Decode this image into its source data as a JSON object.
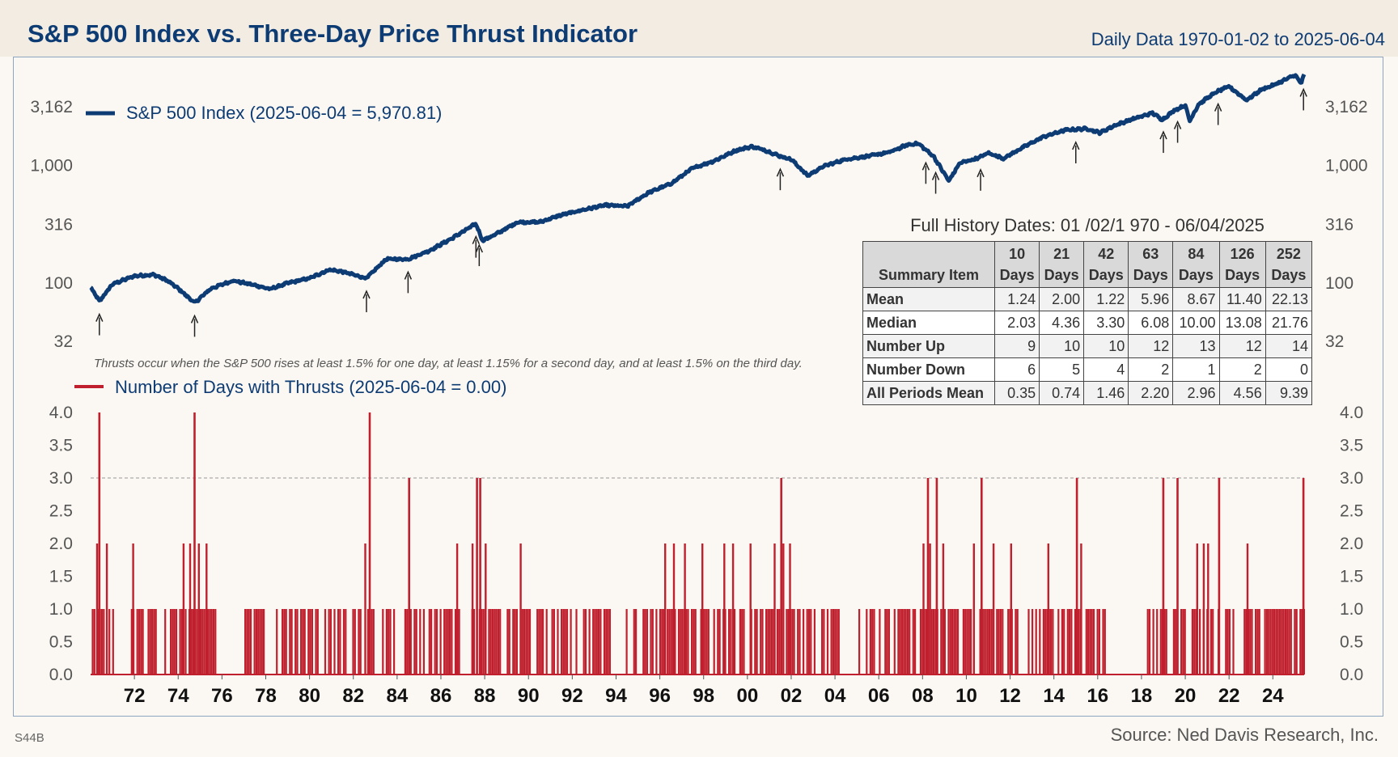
{
  "header": {
    "title": "S&P 500 Index vs. Three-Day Price Thrust Indicator",
    "subtitle": "Daily Data 1970-01-02 to 2025-06-04"
  },
  "footer": {
    "code": "S44B",
    "source": "Source: Ned Davis Research, Inc."
  },
  "colors": {
    "index_line": "#0d3b73",
    "thrust_bars": "#c0202e",
    "background": "#fbf8f3",
    "header_bg": "#f2ece2"
  },
  "summary": {
    "title": "Full History Dates: 01 /02/1 970 - 06/04/2025",
    "item_header": "Summary Item",
    "columns": [
      {
        "n": "10",
        "unit": "Days"
      },
      {
        "n": "21",
        "unit": "Days"
      },
      {
        "n": "42",
        "unit": "Days"
      },
      {
        "n": "63",
        "unit": "Days"
      },
      {
        "n": "84",
        "unit": "Days"
      },
      {
        "n": "126",
        "unit": "Days"
      },
      {
        "n": "252",
        "unit": "Days"
      }
    ],
    "rows": [
      {
        "label": "Mean",
        "values": [
          "1.24",
          "2.00",
          "1.22",
          "5.96",
          "8.67",
          "11.40",
          "22.13"
        ]
      },
      {
        "label": "Median",
        "values": [
          "2.03",
          "4.36",
          "3.30",
          "6.08",
          "10.00",
          "13.08",
          "21.76"
        ]
      },
      {
        "label": "Number Up",
        "values": [
          "9",
          "10",
          "10",
          "12",
          "13",
          "12",
          "14"
        ]
      },
      {
        "label": "Number Down",
        "values": [
          "6",
          "5",
          "4",
          "2",
          "1",
          "2",
          "0"
        ]
      },
      {
        "label": "All Periods Mean",
        "values": [
          "0.35",
          "0.74",
          "1.46",
          "2.20",
          "2.96",
          "4.56",
          "9.39"
        ]
      }
    ]
  },
  "chart_data": [
    {
      "type": "line",
      "log_scale": true,
      "series": [
        {
          "name": "S&P 500 Index (2025-06-04 = 5,970.81)"
        }
      ],
      "y_ticks": [
        32,
        100,
        316,
        1000,
        3162
      ],
      "y_tick_labels": [
        "32",
        "100",
        "316",
        "1,000",
        "3,162"
      ],
      "ylim": [
        32,
        5970.81
      ],
      "grid": false,
      "x": [
        1970.0,
        1970.4,
        1971.0,
        1972.0,
        1972.9,
        1973.5,
        1974.0,
        1974.75,
        1975.5,
        1976.5,
        1977.5,
        1978.2,
        1979.0,
        1980.0,
        1980.9,
        1981.5,
        1982.6,
        1983.5,
        1984.5,
        1985.5,
        1986.5,
        1987.6,
        1987.9,
        1988.5,
        1989.5,
        1990.5,
        1991.5,
        1992.5,
        1993.5,
        1994.5,
        1995.5,
        1996.5,
        1997.5,
        1998.5,
        1999.5,
        2000.2,
        2000.8,
        2001.5,
        2002.0,
        2002.75,
        2003.5,
        2004.5,
        2005.5,
        2006.5,
        2007.3,
        2007.8,
        2008.5,
        2009.2,
        2009.7,
        2010.5,
        2011.0,
        2011.7,
        2012.5,
        2013.5,
        2014.5,
        2015.5,
        2016.1,
        2016.8,
        2017.5,
        2018.5,
        2018.95,
        2019.5,
        2020.0,
        2020.2,
        2020.6,
        2021.0,
        2021.5,
        2022.0,
        2022.8,
        2023.5,
        2024.0,
        2024.6,
        2025.0,
        2025.3,
        2025.43
      ],
      "y": [
        92,
        70,
        98,
        115,
        118,
        105,
        90,
        68,
        90,
        105,
        96,
        89,
        100,
        110,
        130,
        125,
        110,
        160,
        160,
        190,
        240,
        320,
        230,
        260,
        330,
        330,
        380,
        420,
        460,
        450,
        590,
        700,
        950,
        1100,
        1350,
        1450,
        1350,
        1200,
        1130,
        820,
        990,
        1130,
        1200,
        1300,
        1500,
        1540,
        1200,
        740,
        1050,
        1150,
        1280,
        1150,
        1400,
        1750,
        2000,
        2060,
        1900,
        2200,
        2450,
        2800,
        2450,
        2950,
        3250,
        2400,
        3300,
        3750,
        4300,
        4700,
        3600,
        4450,
        4800,
        5400,
        5900,
        5000,
        5970.81
      ]
    },
    {
      "type": "bar",
      "series": [
        {
          "name": "Number of Days with Thrusts (2025-06-04 = 0.00)"
        }
      ],
      "y_ticks": [
        "0.0",
        "0.5",
        "1.0",
        "1.5",
        "2.0",
        "2.5",
        "3.0",
        "3.5",
        "4.0"
      ],
      "ylim": [
        0,
        4
      ],
      "reference_line": 3.0,
      "x_ticks": [
        "72",
        "74",
        "76",
        "78",
        "80",
        "82",
        "84",
        "86",
        "88",
        "90",
        "92",
        "94",
        "96",
        "98",
        "00",
        "02",
        "04",
        "06",
        "08",
        "10",
        "12",
        "14",
        "16",
        "18",
        "20",
        "22",
        "24"
      ],
      "x_tick_years": [
        1972,
        1974,
        1976,
        1978,
        1980,
        1982,
        1984,
        1986,
        1988,
        1990,
        1992,
        1994,
        1996,
        1998,
        2000,
        2002,
        2004,
        2006,
        2008,
        2010,
        2012,
        2014,
        2016,
        2018,
        2020,
        2022,
        2024
      ],
      "peaks": [
        {
          "x": 1970.35,
          "y": 4
        },
        {
          "x": 1974.7,
          "y": 4
        },
        {
          "x": 1982.7,
          "y": 4
        },
        {
          "x": 1984.5,
          "y": 3
        },
        {
          "x": 1987.6,
          "y": 3
        },
        {
          "x": 1987.75,
          "y": 3
        },
        {
          "x": 2001.5,
          "y": 3
        },
        {
          "x": 2008.2,
          "y": 3
        },
        {
          "x": 2008.6,
          "y": 3
        },
        {
          "x": 2010.65,
          "y": 3
        },
        {
          "x": 2015.0,
          "y": 3
        },
        {
          "x": 2018.95,
          "y": 3
        },
        {
          "x": 2019.6,
          "y": 3
        },
        {
          "x": 2021.5,
          "y": 3
        },
        {
          "x": 2025.35,
          "y": 3
        }
      ],
      "bars_at_2": [
        1970.25,
        1970.7,
        1971.9,
        1974.2,
        1974.5,
        1974.9,
        1975.25,
        1982.5,
        1986.7,
        1987.4,
        1988.0,
        1989.6,
        1996.2,
        1996.6,
        1997.1,
        1997.9,
        1998.9,
        1999.3,
        2000.1,
        2001.2,
        2001.6,
        2001.9,
        2008.0,
        2008.3,
        2008.9,
        2010.3,
        2011.2,
        2012.0,
        2013.7,
        2015.2,
        2020.5,
        2020.8,
        2021.0,
        2022.8
      ]
    }
  ],
  "legends": {
    "index": "S&P 500 Index (2025-06-04 = 5,970.81)",
    "thrusts": "Number of Days with Thrusts (2025-06-04 = 0.00)"
  },
  "note": "Thrusts occur when the S&P 500 rises at least 1.5% for one day, at least 1.15% for a second day, and at least 1.5% on the third day.",
  "signal_arrow_years": [
    1970.4,
    1974.75,
    1982.6,
    1984.5,
    1987.6,
    1987.75,
    2001.5,
    2008.15,
    2008.6,
    2010.65,
    2015.0,
    2019.0,
    2019.65,
    2021.5,
    2025.4
  ]
}
